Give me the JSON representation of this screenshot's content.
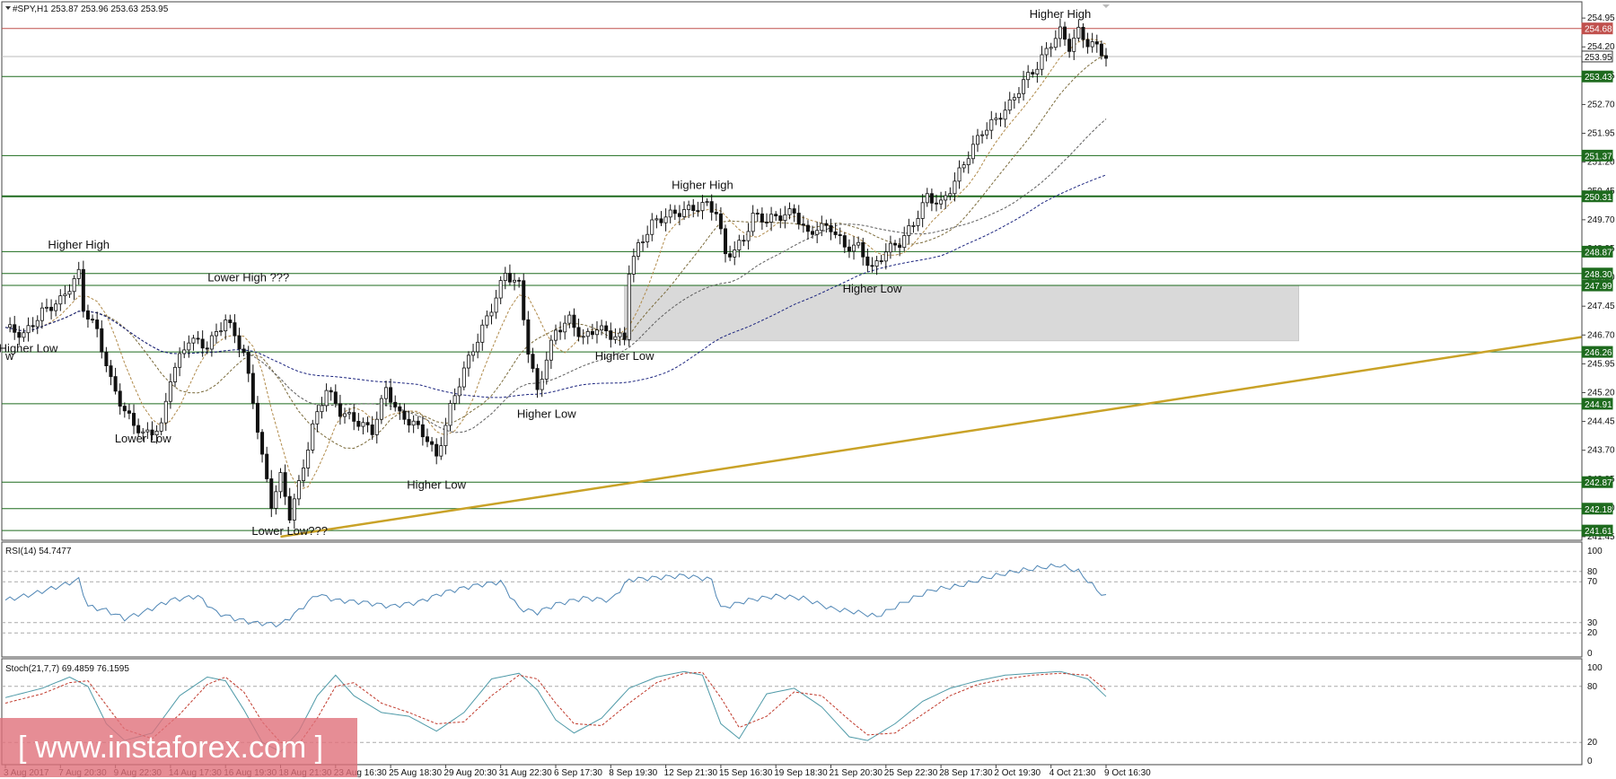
{
  "chart_data": {
    "type": "candlestick",
    "header": "#SPY,H1  253.87 253.96 253.63 253.95",
    "price_axis": {
      "ylim": [
        241.45,
        255.0
      ],
      "ticks": [
        "254.95",
        "254.20",
        "253.45",
        "252.70",
        "251.95",
        "251.20",
        "250.45",
        "249.70",
        "248.95",
        "248.20",
        "247.45",
        "246.70",
        "245.95",
        "245.20",
        "244.45",
        "243.70",
        "242.95",
        "242.20",
        "241.45"
      ]
    },
    "levels": [
      {
        "label": "254.68",
        "value": 254.68,
        "color": "#c0504d",
        "kind": "red"
      },
      {
        "label": "253.95",
        "value": 253.95,
        "color": "#ffffff",
        "kind": "current"
      },
      {
        "label": "253.43",
        "value": 253.43,
        "color": "#1e6b1e",
        "kind": "green"
      },
      {
        "label": "251.37",
        "value": 251.37,
        "color": "#1e6b1e",
        "kind": "green"
      },
      {
        "label": "250.31",
        "value": 250.31,
        "color": "#1e6b1e",
        "kind": "green"
      },
      {
        "label": "248.87",
        "value": 248.87,
        "color": "#1e6b1e",
        "kind": "green"
      },
      {
        "label": "248.30",
        "value": 248.3,
        "color": "#1e6b1e",
        "kind": "green"
      },
      {
        "label": "247.99",
        "value": 247.99,
        "color": "#1e6b1e",
        "kind": "green"
      },
      {
        "label": "246.26",
        "value": 246.26,
        "color": "#1e6b1e",
        "kind": "green"
      },
      {
        "label": "244.91",
        "value": 244.91,
        "color": "#1e6b1e",
        "kind": "green"
      },
      {
        "label": "242.87",
        "value": 242.87,
        "color": "#1e6b1e",
        "kind": "green"
      },
      {
        "label": "242.18",
        "value": 242.18,
        "color": "#1e6b1e",
        "kind": "green"
      },
      {
        "label": "241.61",
        "value": 241.61,
        "color": "#1e6b1e",
        "kind": "green"
      }
    ],
    "zone": {
      "from_index": 135,
      "to_index": 282,
      "top": 247.99,
      "bottom": 246.55
    },
    "trendline": {
      "start_index": 60,
      "start_value": 241.45,
      "end_index": 352,
      "end_value": 246.8,
      "color": "#c9a227"
    },
    "x_labels": [
      {
        "label": "3 Aug 2017",
        "i": 0
      },
      {
        "label": "7 Aug 20:30",
        "i": 12
      },
      {
        "label": "9 Aug 22:30",
        "i": 24
      },
      {
        "label": "14 Aug 17:30",
        "i": 36
      },
      {
        "label": "16 Aug 19:30",
        "i": 48
      },
      {
        "label": "18 Aug 21:30",
        "i": 60
      },
      {
        "label": "23 Aug 16:30",
        "i": 72
      },
      {
        "label": "25 Aug 18:30",
        "i": 84
      },
      {
        "label": "29 Aug 20:30",
        "i": 96
      },
      {
        "label": "31 Aug 22:30",
        "i": 108
      },
      {
        "label": "6 Sep 17:30",
        "i": 120
      },
      {
        "label": "8 Sep 19:30",
        "i": 132
      },
      {
        "label": "12 Sep 21:30",
        "i": 144
      },
      {
        "label": "15 Sep 16:30",
        "i": 156
      },
      {
        "label": "19 Sep 18:30",
        "i": 168
      },
      {
        "label": "21 Sep 20:30",
        "i": 180
      },
      {
        "label": "25 Sep 22:30",
        "i": 192
      },
      {
        "label": "28 Sep 17:30",
        "i": 204
      },
      {
        "label": "2 Oct 19:30",
        "i": 216
      },
      {
        "label": "4 Oct 21:30",
        "i": 228
      },
      {
        "label": "9 Oct 16:30",
        "i": 240
      }
    ],
    "annotations": [
      {
        "text": "Higher High",
        "i": 16,
        "price": 248.95
      },
      {
        "text": "Higher Low",
        "i": 5,
        "price": 246.25
      },
      {
        "text": "w",
        "i": 0,
        "price": 246.05
      },
      {
        "text": "Lower Low",
        "i": 30,
        "price": 243.9
      },
      {
        "text": "Lower High ???",
        "i": 53,
        "price": 248.1
      },
      {
        "text": "Lower Low???",
        "i": 62,
        "price": 241.5
      },
      {
        "text": "Higher Low",
        "i": 94,
        "price": 242.7
      },
      {
        "text": "Higher Low",
        "i": 118,
        "price": 244.55
      },
      {
        "text": "Higher Low",
        "i": 135,
        "price": 246.05
      },
      {
        "text": "Higher High",
        "i": 152,
        "price": 250.5
      },
      {
        "text": "Higher Low",
        "i": 189,
        "price": 247.8
      },
      {
        "text": "Higher High",
        "i": 230,
        "price": 254.95
      }
    ],
    "price_points": [
      [
        0,
        246.9
      ],
      [
        4,
        246.7
      ],
      [
        8,
        247.3
      ],
      [
        12,
        247.6
      ],
      [
        16,
        248.3
      ],
      [
        17,
        247.4
      ],
      [
        20,
        246.8
      ],
      [
        23,
        245.5
      ],
      [
        26,
        244.7
      ],
      [
        30,
        244.1
      ],
      [
        34,
        244.3
      ],
      [
        36,
        245.6
      ],
      [
        40,
        246.6
      ],
      [
        44,
        246.4
      ],
      [
        48,
        247.1
      ],
      [
        50,
        246.7
      ],
      [
        52,
        246.2
      ],
      [
        54,
        245.0
      ],
      [
        56,
        243.5
      ],
      [
        58,
        242.3
      ],
      [
        60,
        243.0
      ],
      [
        62,
        242.0
      ],
      [
        64,
        242.8
      ],
      [
        67,
        244.3
      ],
      [
        70,
        245.3
      ],
      [
        73,
        244.7
      ],
      [
        76,
        244.5
      ],
      [
        80,
        244.2
      ],
      [
        83,
        245.3
      ],
      [
        86,
        244.6
      ],
      [
        89,
        244.4
      ],
      [
        92,
        244.0
      ],
      [
        94,
        243.5
      ],
      [
        97,
        244.8
      ],
      [
        100,
        245.8
      ],
      [
        103,
        246.6
      ],
      [
        106,
        247.4
      ],
      [
        109,
        248.3
      ],
      [
        112,
        248.0
      ],
      [
        114,
        246.3
      ],
      [
        116,
        245.2
      ],
      [
        118,
        246.1
      ],
      [
        120,
        246.8
      ],
      [
        123,
        247.1
      ],
      [
        126,
        246.6
      ],
      [
        129,
        246.9
      ],
      [
        132,
        246.7
      ],
      [
        135,
        246.6
      ],
      [
        136,
        248.4
      ],
      [
        138,
        249.0
      ],
      [
        141,
        249.6
      ],
      [
        144,
        249.8
      ],
      [
        147,
        249.9
      ],
      [
        150,
        250.0
      ],
      [
        153,
        250.1
      ],
      [
        155,
        249.9
      ],
      [
        157,
        248.8
      ],
      [
        159,
        248.9
      ],
      [
        161,
        249.2
      ],
      [
        163,
        249.8
      ],
      [
        166,
        249.7
      ],
      [
        169,
        249.8
      ],
      [
        172,
        249.9
      ],
      [
        175,
        249.3
      ],
      [
        177,
        249.5
      ],
      [
        180,
        249.5
      ],
      [
        183,
        249.0
      ],
      [
        186,
        249.0
      ],
      [
        189,
        248.4
      ],
      [
        192,
        248.9
      ],
      [
        195,
        249.1
      ],
      [
        198,
        249.6
      ],
      [
        201,
        250.3
      ],
      [
        204,
        250.1
      ],
      [
        207,
        250.7
      ],
      [
        210,
        251.4
      ],
      [
        213,
        252.0
      ],
      [
        216,
        252.3
      ],
      [
        219,
        252.7
      ],
      [
        222,
        253.3
      ],
      [
        225,
        253.7
      ],
      [
        228,
        254.3
      ],
      [
        230,
        254.6
      ],
      [
        232,
        254.2
      ],
      [
        234,
        254.6
      ],
      [
        236,
        254.3
      ],
      [
        238,
        254.2
      ],
      [
        240,
        253.95
      ]
    ],
    "rsi": {
      "label": "RSI(14) 54.7477",
      "ylim": [
        0,
        100
      ],
      "ticks": [
        "100",
        "80",
        "70",
        "30",
        "20",
        "0"
      ],
      "points": [
        [
          0,
          52
        ],
        [
          6,
          58
        ],
        [
          12,
          66
        ],
        [
          16,
          72
        ],
        [
          18,
          46
        ],
        [
          22,
          42
        ],
        [
          26,
          34
        ],
        [
          30,
          40
        ],
        [
          36,
          52
        ],
        [
          42,
          56
        ],
        [
          46,
          40
        ],
        [
          50,
          34
        ],
        [
          54,
          30
        ],
        [
          60,
          28
        ],
        [
          64,
          42
        ],
        [
          68,
          58
        ],
        [
          72,
          52
        ],
        [
          78,
          50
        ],
        [
          84,
          46
        ],
        [
          90,
          50
        ],
        [
          96,
          60
        ],
        [
          102,
          66
        ],
        [
          108,
          70
        ],
        [
          112,
          44
        ],
        [
          116,
          40
        ],
        [
          120,
          48
        ],
        [
          126,
          54
        ],
        [
          132,
          52
        ],
        [
          136,
          72
        ],
        [
          142,
          74
        ],
        [
          148,
          76
        ],
        [
          154,
          72
        ],
        [
          156,
          44
        ],
        [
          162,
          52
        ],
        [
          168,
          56
        ],
        [
          174,
          54
        ],
        [
          180,
          44
        ],
        [
          186,
          40
        ],
        [
          190,
          36
        ],
        [
          196,
          50
        ],
        [
          202,
          62
        ],
        [
          208,
          66
        ],
        [
          214,
          74
        ],
        [
          220,
          80
        ],
        [
          226,
          84
        ],
        [
          230,
          86
        ],
        [
          234,
          80
        ],
        [
          238,
          62
        ],
        [
          240,
          55
        ]
      ]
    },
    "stoch": {
      "label": "Stoch(21,7,7) 69.4859 76.1595",
      "ylim": [
        0,
        100
      ],
      "ticks": [
        "100",
        "80",
        "20",
        "0"
      ],
      "main": [
        [
          0,
          68
        ],
        [
          8,
          78
        ],
        [
          14,
          90
        ],
        [
          18,
          80
        ],
        [
          22,
          40
        ],
        [
          26,
          22
        ],
        [
          32,
          30
        ],
        [
          38,
          70
        ],
        [
          44,
          90
        ],
        [
          48,
          86
        ],
        [
          52,
          55
        ],
        [
          56,
          20
        ],
        [
          60,
          10
        ],
        [
          64,
          32
        ],
        [
          68,
          70
        ],
        [
          72,
          92
        ],
        [
          76,
          70
        ],
        [
          82,
          52
        ],
        [
          88,
          48
        ],
        [
          94,
          32
        ],
        [
          100,
          52
        ],
        [
          106,
          88
        ],
        [
          112,
          94
        ],
        [
          116,
          76
        ],
        [
          120,
          44
        ],
        [
          124,
          30
        ],
        [
          130,
          46
        ],
        [
          136,
          78
        ],
        [
          142,
          90
        ],
        [
          148,
          96
        ],
        [
          152,
          92
        ],
        [
          156,
          40
        ],
        [
          160,
          24
        ],
        [
          166,
          72
        ],
        [
          172,
          78
        ],
        [
          178,
          58
        ],
        [
          184,
          26
        ],
        [
          188,
          22
        ],
        [
          194,
          40
        ],
        [
          200,
          64
        ],
        [
          206,
          78
        ],
        [
          212,
          86
        ],
        [
          218,
          92
        ],
        [
          224,
          94
        ],
        [
          230,
          96
        ],
        [
          236,
          88
        ],
        [
          240,
          69
        ]
      ],
      "signal": [
        [
          0,
          62
        ],
        [
          8,
          72
        ],
        [
          14,
          84
        ],
        [
          18,
          86
        ],
        [
          22,
          60
        ],
        [
          26,
          34
        ],
        [
          32,
          24
        ],
        [
          38,
          50
        ],
        [
          44,
          82
        ],
        [
          48,
          90
        ],
        [
          52,
          74
        ],
        [
          56,
          42
        ],
        [
          60,
          20
        ],
        [
          64,
          18
        ],
        [
          68,
          46
        ],
        [
          72,
          80
        ],
        [
          76,
          84
        ],
        [
          82,
          62
        ],
        [
          88,
          52
        ],
        [
          94,
          40
        ],
        [
          100,
          42
        ],
        [
          106,
          70
        ],
        [
          112,
          92
        ],
        [
          116,
          88
        ],
        [
          120,
          62
        ],
        [
          124,
          40
        ],
        [
          130,
          38
        ],
        [
          136,
          62
        ],
        [
          142,
          84
        ],
        [
          148,
          94
        ],
        [
          152,
          95
        ],
        [
          156,
          68
        ],
        [
          160,
          36
        ],
        [
          166,
          48
        ],
        [
          172,
          74
        ],
        [
          178,
          70
        ],
        [
          184,
          44
        ],
        [
          188,
          28
        ],
        [
          194,
          30
        ],
        [
          200,
          50
        ],
        [
          206,
          70
        ],
        [
          212,
          82
        ],
        [
          218,
          88
        ],
        [
          224,
          92
        ],
        [
          230,
          94
        ],
        [
          236,
          92
        ],
        [
          240,
          76
        ]
      ]
    }
  },
  "watermark": {
    "text": "[ www.instaforex.com ]"
  }
}
